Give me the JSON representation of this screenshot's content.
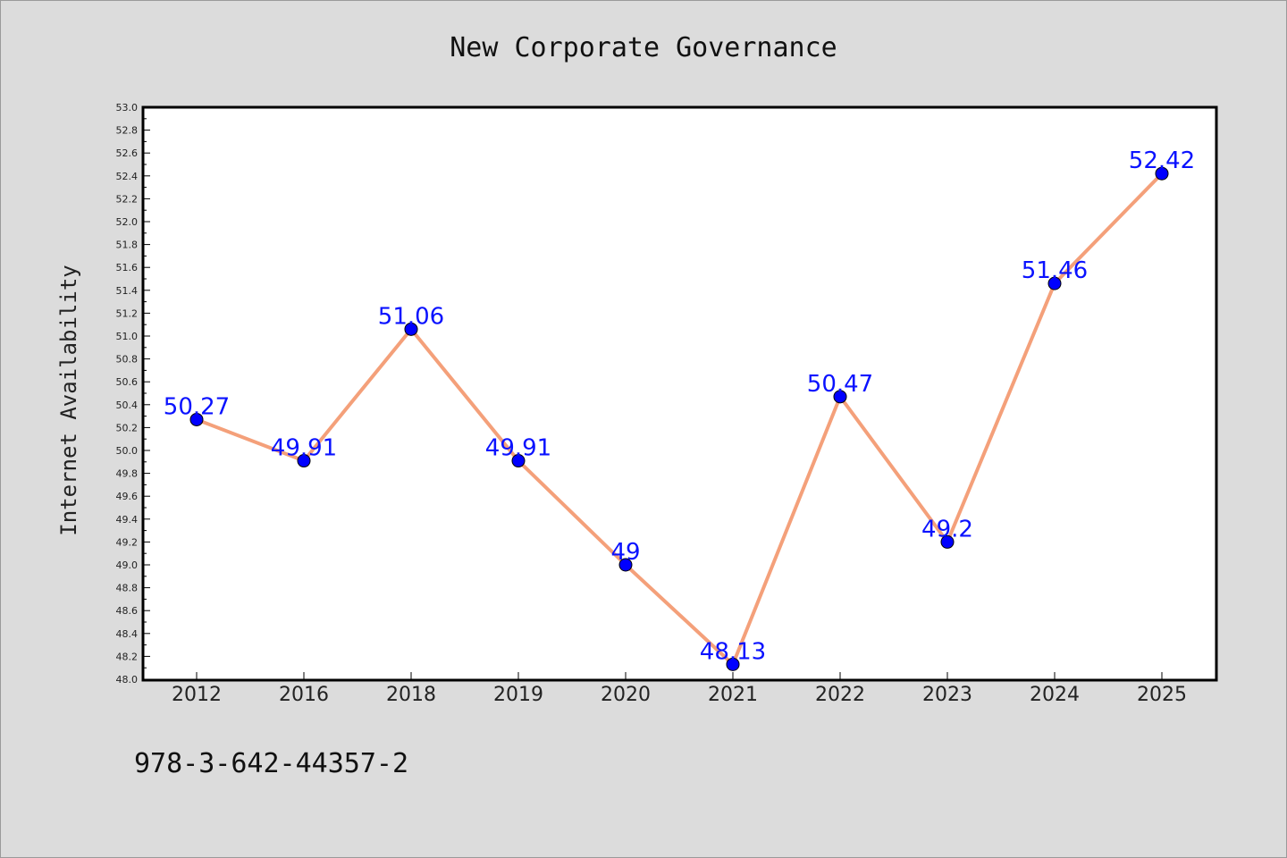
{
  "chart_data": {
    "type": "line",
    "title": "New Corporate Governance",
    "xlabel": "",
    "ylabel": "Internet Availability",
    "categories": [
      "2012",
      "2016",
      "2018",
      "2019",
      "2020",
      "2021",
      "2022",
      "2023",
      "2024",
      "2025"
    ],
    "series": [
      {
        "values": [
          50.27,
          49.91,
          51.06,
          49.91,
          49,
          48.13,
          50.47,
          49.2,
          51.46,
          52.42
        ],
        "labels": [
          "50.27",
          "49.91",
          "51.06",
          "49.91",
          "49",
          "48.13",
          "50.47",
          "49.2",
          "51.46",
          "52.42"
        ],
        "line_color": "#f4a07a",
        "marker_color": "#0000ff"
      }
    ],
    "ylim": [
      48.0,
      53.0
    ],
    "yticks": [
      "48.0",
      "48.2",
      "48.4",
      "48.6",
      "48.8",
      "49.0",
      "49.2",
      "49.4",
      "49.6",
      "49.8",
      "50.0",
      "50.2",
      "50.4",
      "50.6",
      "50.8",
      "51.0",
      "51.2",
      "51.4",
      "51.6",
      "51.8",
      "52.0",
      "52.2",
      "52.4",
      "52.6",
      "52.8",
      "53.0"
    ],
    "grid": false,
    "legend": "none"
  },
  "footer": {
    "code": "978-3-642-44357-2"
  },
  "colors": {
    "background": "#dcdcdc",
    "plot_background": "#ffffff",
    "label_color": "#0a12ff"
  }
}
